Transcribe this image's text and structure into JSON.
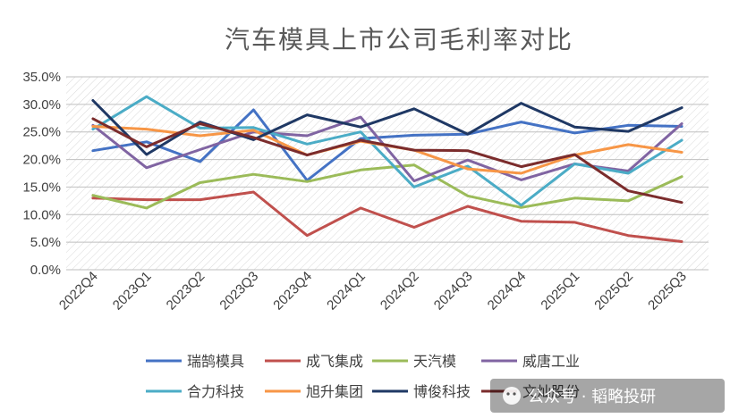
{
  "chart_data": {
    "type": "line",
    "title": "汽车模具上市公司毛利率对比",
    "xlabel": "",
    "ylabel": "",
    "ylim": [
      0,
      35
    ],
    "y_ticks": [
      "0.0%",
      "5.0%",
      "10.0%",
      "15.0%",
      "20.0%",
      "25.0%",
      "30.0%",
      "35.0%"
    ],
    "grid": true,
    "legend_position": "bottom",
    "categories": [
      "2022Q4",
      "2023Q1",
      "2023Q2",
      "2023Q3",
      "2023Q4",
      "2024Q1",
      "2024Q2",
      "2024Q3",
      "2024Q4",
      "2025Q1",
      "2025Q2",
      "2025Q3"
    ],
    "series": [
      {
        "name": "瑞鹄模具",
        "color": "#4472c4",
        "values": [
          21.6,
          23.2,
          19.6,
          29.0,
          16.2,
          23.8,
          24.4,
          24.6,
          26.8,
          24.8,
          26.2,
          26.0
        ]
      },
      {
        "name": "成飞集成",
        "color": "#c0504d",
        "values": [
          13.0,
          12.7,
          12.7,
          14.1,
          6.2,
          11.2,
          7.7,
          11.5,
          8.8,
          8.6,
          6.2,
          5.1
        ]
      },
      {
        "name": "天汽模",
        "color": "#9bbb59",
        "values": [
          13.5,
          11.2,
          15.8,
          17.3,
          16.0,
          18.1,
          19.0,
          13.4,
          11.3,
          13.0,
          12.5,
          16.9
        ]
      },
      {
        "name": "威唐工业",
        "color": "#8064a2",
        "values": [
          26.2,
          18.5,
          21.8,
          25.0,
          24.3,
          27.7,
          16.1,
          19.9,
          16.3,
          19.2,
          17.9,
          26.5
        ]
      },
      {
        "name": "合力科技",
        "color": "#4bacc6",
        "values": [
          25.5,
          31.4,
          25.7,
          25.8,
          22.8,
          25.0,
          15.0,
          18.8,
          11.7,
          19.2,
          17.5,
          23.5
        ]
      },
      {
        "name": "旭升集团",
        "color": "#f79646",
        "values": [
          26.0,
          25.5,
          24.3,
          25.3,
          20.8,
          23.3,
          21.7,
          18.3,
          17.5,
          20.8,
          22.7,
          21.3
        ]
      },
      {
        "name": "博俊科技",
        "color": "#1f3864",
        "values": [
          30.7,
          20.9,
          26.8,
          23.6,
          28.1,
          25.9,
          29.2,
          24.6,
          30.2,
          25.9,
          25.1,
          29.4
        ]
      },
      {
        "name": "文灿股份",
        "color": "#7b2c2c",
        "values": [
          27.4,
          22.3,
          26.5,
          24.0,
          20.8,
          23.5,
          21.7,
          21.6,
          18.7,
          20.9,
          14.3,
          12.2
        ]
      }
    ]
  },
  "watermark": "公众号 · 韬略投研"
}
